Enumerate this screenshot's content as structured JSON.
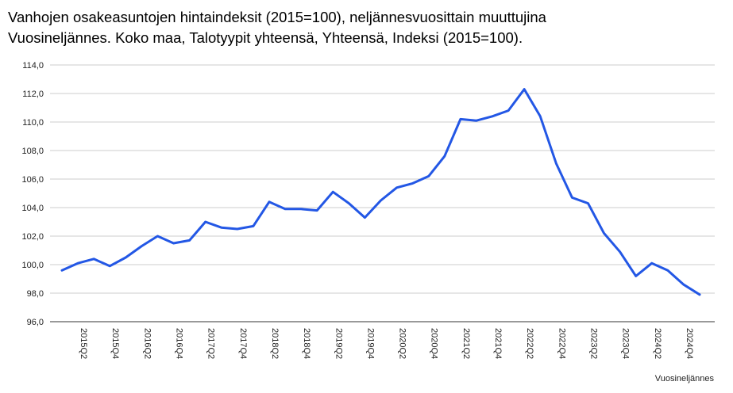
{
  "title_line1": "Vanhojen osakeasuntojen hintaindeksit (2015=100), neljännesvuosittain muuttujina",
  "title_line2": "Vuosineljännes. Koko maa, Talotyypit yhteensä, Yhteensä, Indeksi (2015=100).",
  "colors": {
    "line": "#2357e5",
    "grid": "#cccccc",
    "axis": "#333333"
  },
  "chart_data": {
    "type": "line",
    "title": "Vanhojen osakeasuntojen hintaindeksit (2015=100), neljännesvuosittain muuttujina Vuosineljännes. Koko maa, Talotyypit yhteensä, Yhteensä, Indeksi (2015=100).",
    "xlabel": "Vuosineljännes",
    "ylabel": "",
    "ylim": [
      96,
      114
    ],
    "yticks": [
      "96,0",
      "98,0",
      "100,0",
      "102,0",
      "104,0",
      "106,0",
      "108,0",
      "110,0",
      "112,0",
      "114,0"
    ],
    "grid": true,
    "x": [
      "2015Q1",
      "2015Q2",
      "2015Q3",
      "2015Q4",
      "2016Q1",
      "2016Q2",
      "2016Q3",
      "2016Q4",
      "2017Q1",
      "2017Q2",
      "2017Q3",
      "2017Q4",
      "2018Q1",
      "2018Q2",
      "2018Q3",
      "2018Q4",
      "2019Q1",
      "2019Q2",
      "2019Q3",
      "2019Q4",
      "2020Q1",
      "2020Q2",
      "2020Q3",
      "2020Q4",
      "2021Q1",
      "2021Q2",
      "2021Q3",
      "2021Q4",
      "2022Q1",
      "2022Q2",
      "2022Q3",
      "2022Q4",
      "2023Q1",
      "2023Q2",
      "2023Q3",
      "2023Q4",
      "2024Q1",
      "2024Q2",
      "2024Q3",
      "2024Q4",
      "2025Q1"
    ],
    "xtick_labels": [
      "2015Q2",
      "2015Q4",
      "2016Q2",
      "2016Q4",
      "2017Q2",
      "2017Q4",
      "2018Q2",
      "2018Q4",
      "2019Q2",
      "2019Q4",
      "2020Q2",
      "2020Q4",
      "2021Q2",
      "2021Q4",
      "2022Q2",
      "2022Q4",
      "2023Q2",
      "2023Q4",
      "2024Q2",
      "2024Q4"
    ],
    "series": [
      {
        "values": [
          99.6,
          100.1,
          100.4,
          99.9,
          100.5,
          101.3,
          102.0,
          101.5,
          101.7,
          103.0,
          102.6,
          102.5,
          102.7,
          104.4,
          103.9,
          103.9,
          103.8,
          105.1,
          104.3,
          103.3,
          104.5,
          105.4,
          105.7,
          106.2,
          107.6,
          110.2,
          110.1,
          110.4,
          110.8,
          112.3,
          110.4,
          107.1,
          104.7,
          104.3,
          102.2,
          100.9,
          99.2,
          100.1,
          99.6,
          98.6,
          97.9
        ]
      }
    ]
  }
}
